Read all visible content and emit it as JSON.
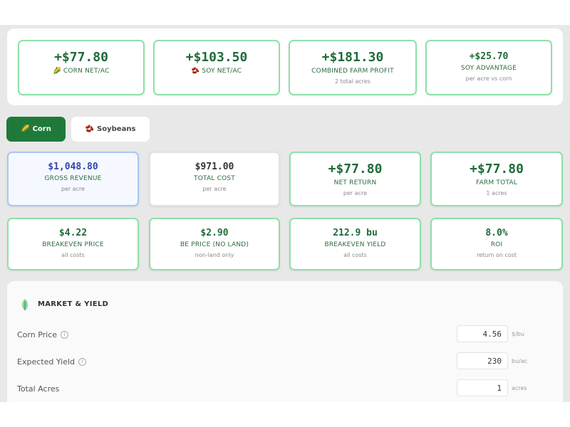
{
  "summary": [
    {
      "value": "+$77.80",
      "icon": "🌽",
      "label": "CORN NET/AC"
    },
    {
      "value": "+$103.50",
      "icon": "🫘",
      "label": "SOY NET/AC"
    },
    {
      "value": "+$181.30",
      "label": "COMBINED FARM PROFIT",
      "sub": "2 total acres"
    },
    {
      "value": "+$25.70",
      "label": "SOY ADVANTAGE",
      "sub": "per acre vs corn"
    }
  ],
  "tabs": [
    {
      "icon": "🌽",
      "label": "Corn"
    },
    {
      "icon": "🫘",
      "label": "Soybeans"
    }
  ],
  "metrics": [
    {
      "value": "$1,048.80",
      "label": "GROSS REVENUE",
      "sub": "per acre"
    },
    {
      "value": "$971.00",
      "label": "TOTAL COST",
      "sub": "per acre"
    },
    {
      "value": "+$77.80",
      "label": "NET RETURN",
      "sub": "per acre"
    },
    {
      "value": "+$77.80",
      "label": "FARM TOTAL",
      "sub": "1 acres"
    },
    {
      "value": "$4.22",
      "label": "BREAKEVEN PRICE",
      "sub": "all costs"
    },
    {
      "value": "$2.90",
      "label": "BE PRICE (NO LAND)",
      "sub": "non-land only"
    },
    {
      "value": "212.9 bu",
      "label": "BREAKEVEN YIELD",
      "sub": "all costs"
    },
    {
      "value": "8.0%",
      "label": "ROI",
      "sub": "return on cost"
    }
  ],
  "section": {
    "title": "MARKET & YIELD",
    "fields": [
      {
        "label": "Corn Price",
        "value": "4.56",
        "unit": "$/bu"
      },
      {
        "label": "Expected Yield",
        "value": "230",
        "unit": "bu/ac"
      },
      {
        "label": "Total Acres",
        "value": "1",
        "unit": "acres"
      }
    ]
  }
}
